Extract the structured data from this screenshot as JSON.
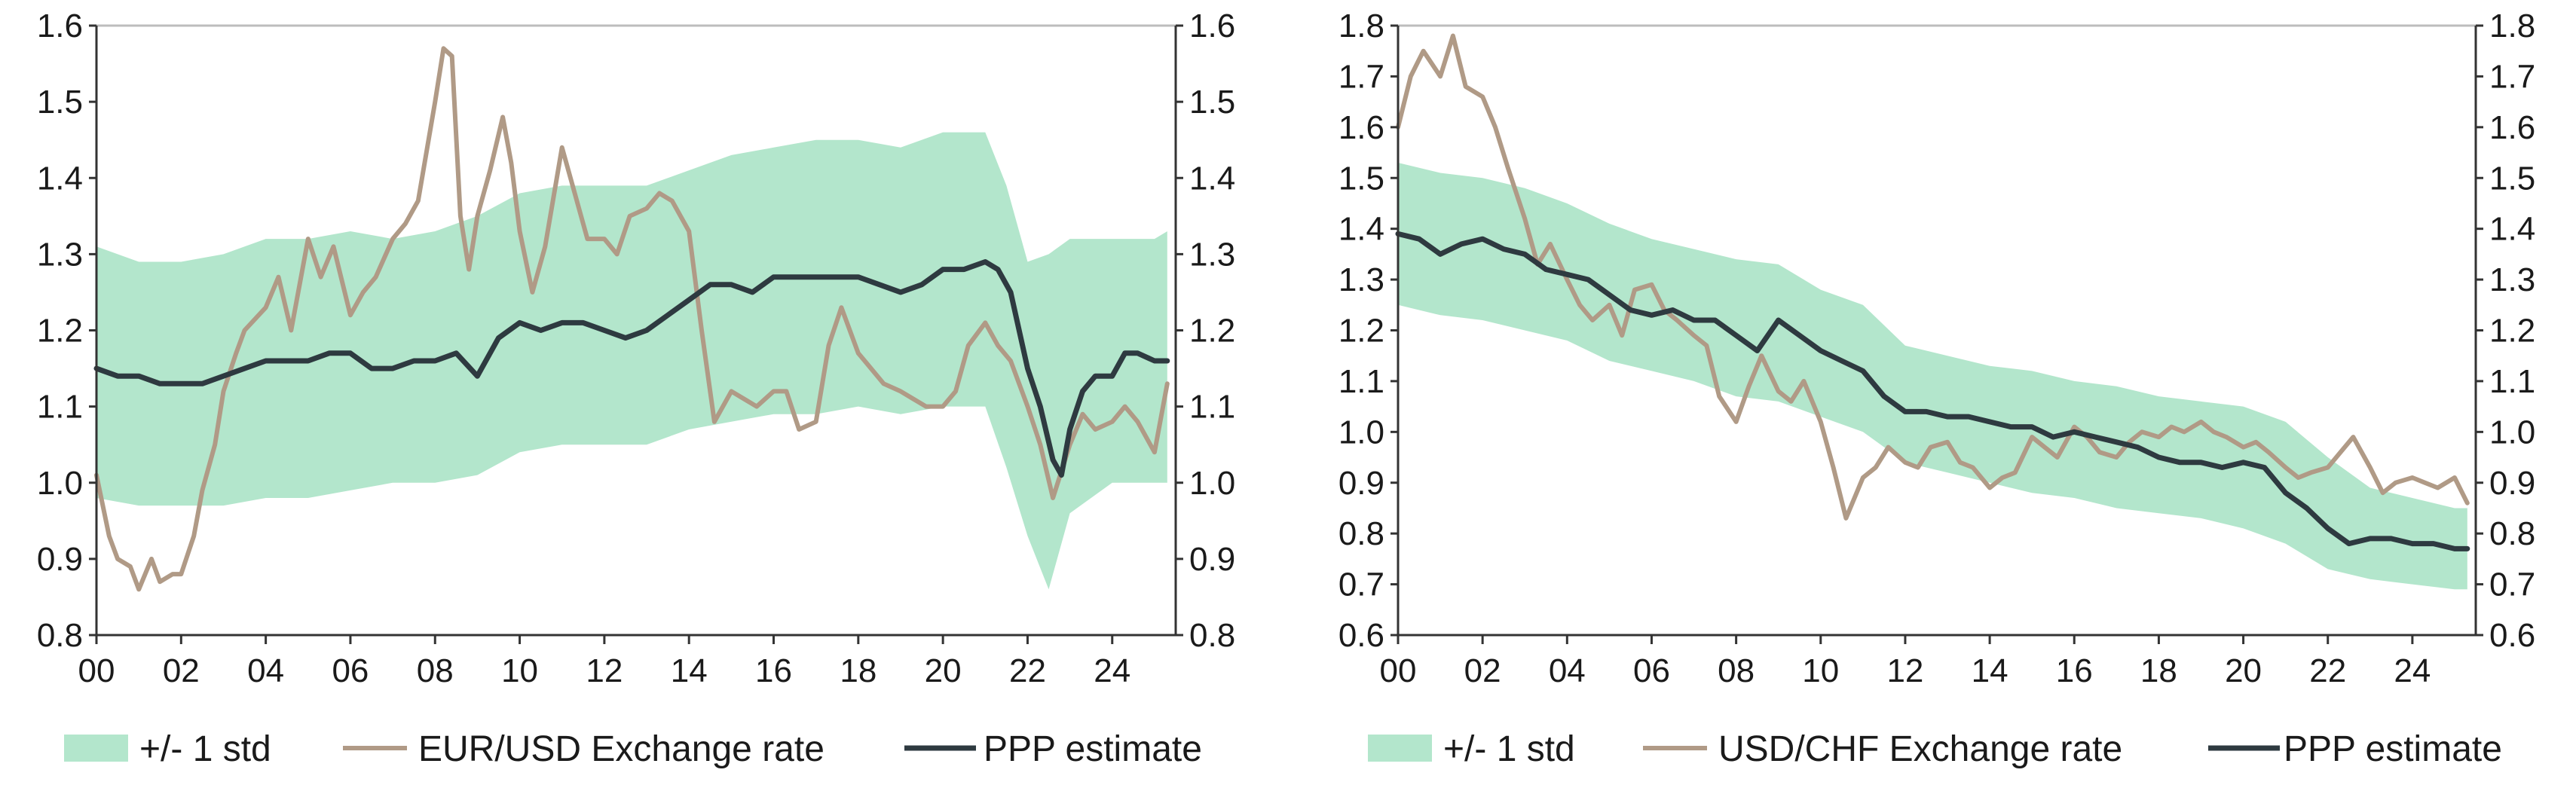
{
  "colors": {
    "band": "#b3e6cc",
    "rate": "#b09a86",
    "ppp": "#2e3a40"
  },
  "chart_data": [
    {
      "type": "line",
      "series_labels": {
        "band": "+/- 1 std",
        "rate": "EUR/USD Exchange rate",
        "ppp": "PPP estimate"
      },
      "x_range": [
        0,
        25.5
      ],
      "x_ticks": [
        0,
        2,
        4,
        6,
        8,
        10,
        12,
        14,
        16,
        18,
        20,
        22,
        24
      ],
      "x_tick_labels": [
        "00",
        "02",
        "04",
        "06",
        "08",
        "10",
        "12",
        "14",
        "16",
        "18",
        "20",
        "22",
        "24"
      ],
      "ylim": [
        0.8,
        1.6
      ],
      "y_ticks": [
        0.8,
        0.9,
        1.0,
        1.1,
        1.2,
        1.3,
        1.4,
        1.5,
        1.6
      ],
      "y_tick_labels": [
        "0.8",
        "0.9",
        "1.0",
        "1.1",
        "1.2",
        "1.3",
        "1.4",
        "1.5",
        "1.6"
      ],
      "ppp": {
        "x": [
          0,
          0.5,
          1,
          1.5,
          2,
          2.5,
          3,
          3.5,
          4,
          4.5,
          5,
          5.5,
          6,
          6.5,
          7,
          7.5,
          8,
          8.5,
          9,
          9.5,
          10,
          10.5,
          11,
          11.5,
          12,
          12.5,
          13,
          13.5,
          14,
          14.5,
          15,
          15.5,
          16,
          16.5,
          17,
          17.5,
          18,
          18.5,
          19,
          19.5,
          20,
          20.5,
          21,
          21.3,
          21.6,
          22,
          22.3,
          22.6,
          22.8,
          23,
          23.3,
          23.6,
          24,
          24.3,
          24.6,
          25,
          25.3
        ],
        "y": [
          1.15,
          1.14,
          1.14,
          1.13,
          1.13,
          1.13,
          1.14,
          1.15,
          1.16,
          1.16,
          1.16,
          1.17,
          1.17,
          1.15,
          1.15,
          1.16,
          1.16,
          1.17,
          1.14,
          1.19,
          1.21,
          1.2,
          1.21,
          1.21,
          1.2,
          1.19,
          1.2,
          1.22,
          1.24,
          1.26,
          1.26,
          1.25,
          1.27,
          1.27,
          1.27,
          1.27,
          1.27,
          1.26,
          1.25,
          1.26,
          1.28,
          1.28,
          1.29,
          1.28,
          1.25,
          1.15,
          1.1,
          1.03,
          1.01,
          1.07,
          1.12,
          1.14,
          1.14,
          1.17,
          1.17,
          1.16,
          1.16
        ]
      },
      "rate": {
        "x": [
          0,
          0.3,
          0.5,
          0.8,
          1,
          1.3,
          1.5,
          1.8,
          2,
          2.3,
          2.5,
          2.8,
          3,
          3.3,
          3.5,
          4,
          4.3,
          4.6,
          5,
          5.3,
          5.6,
          6,
          6.3,
          6.6,
          7,
          7.3,
          7.6,
          8,
          8.2,
          8.4,
          8.6,
          8.8,
          9,
          9.3,
          9.6,
          9.8,
          10,
          10.3,
          10.6,
          11,
          11.3,
          11.6,
          12,
          12.3,
          12.6,
          13,
          13.3,
          13.6,
          14,
          14.3,
          14.6,
          15,
          15.3,
          15.6,
          16,
          16.3,
          16.6,
          17,
          17.3,
          17.6,
          18,
          18.3,
          18.6,
          19,
          19.3,
          19.6,
          20,
          20.3,
          20.6,
          21,
          21.3,
          21.6,
          22,
          22.3,
          22.6,
          23,
          23.3,
          23.6,
          24,
          24.3,
          24.6,
          25,
          25.3
        ],
        "y": [
          1.01,
          0.93,
          0.9,
          0.89,
          0.86,
          0.9,
          0.87,
          0.88,
          0.88,
          0.93,
          0.99,
          1.05,
          1.12,
          1.17,
          1.2,
          1.23,
          1.27,
          1.2,
          1.32,
          1.27,
          1.31,
          1.22,
          1.25,
          1.27,
          1.32,
          1.34,
          1.37,
          1.5,
          1.57,
          1.56,
          1.35,
          1.28,
          1.35,
          1.41,
          1.48,
          1.42,
          1.33,
          1.25,
          1.31,
          1.44,
          1.38,
          1.32,
          1.32,
          1.3,
          1.35,
          1.36,
          1.38,
          1.37,
          1.33,
          1.2,
          1.08,
          1.12,
          1.11,
          1.1,
          1.12,
          1.12,
          1.07,
          1.08,
          1.18,
          1.23,
          1.17,
          1.15,
          1.13,
          1.12,
          1.11,
          1.1,
          1.1,
          1.12,
          1.18,
          1.21,
          1.18,
          1.16,
          1.1,
          1.05,
          0.98,
          1.05,
          1.09,
          1.07,
          1.08,
          1.1,
          1.08,
          1.04,
          1.13
        ]
      },
      "band_upper": {
        "x": [
          0,
          1,
          2,
          3,
          4,
          5,
          6,
          7,
          8,
          9,
          10,
          11,
          12,
          13,
          14,
          15,
          16,
          17,
          18,
          19,
          20,
          21,
          21.5,
          22,
          22.5,
          23,
          24,
          25,
          25.3
        ],
        "y": [
          1.31,
          1.29,
          1.29,
          1.3,
          1.32,
          1.32,
          1.33,
          1.32,
          1.33,
          1.35,
          1.38,
          1.39,
          1.39,
          1.39,
          1.41,
          1.43,
          1.44,
          1.45,
          1.45,
          1.44,
          1.46,
          1.46,
          1.39,
          1.29,
          1.3,
          1.32,
          1.32,
          1.32,
          1.33
        ]
      },
      "band_lower": {
        "x": [
          0,
          1,
          2,
          3,
          4,
          5,
          6,
          7,
          8,
          9,
          10,
          11,
          12,
          13,
          14,
          15,
          16,
          17,
          18,
          19,
          20,
          21,
          21.5,
          22,
          22.5,
          23,
          24,
          25,
          25.3
        ],
        "y": [
          0.98,
          0.97,
          0.97,
          0.97,
          0.98,
          0.98,
          0.99,
          1.0,
          1.0,
          1.01,
          1.04,
          1.05,
          1.05,
          1.05,
          1.07,
          1.08,
          1.09,
          1.09,
          1.1,
          1.09,
          1.1,
          1.1,
          1.02,
          0.93,
          0.86,
          0.96,
          1.0,
          1.0,
          1.0
        ]
      }
    },
    {
      "type": "line",
      "series_labels": {
        "band": "+/- 1 std",
        "rate": "USD/CHF Exchange rate",
        "ppp": "PPP estimate"
      },
      "x_range": [
        0,
        25.5
      ],
      "x_ticks": [
        0,
        2,
        4,
        6,
        8,
        10,
        12,
        14,
        16,
        18,
        20,
        22,
        24
      ],
      "x_tick_labels": [
        "00",
        "02",
        "04",
        "06",
        "08",
        "10",
        "12",
        "14",
        "16",
        "18",
        "20",
        "22",
        "24"
      ],
      "ylim": [
        0.6,
        1.8
      ],
      "y_ticks": [
        0.6,
        0.7,
        0.8,
        0.9,
        1.0,
        1.1,
        1.2,
        1.3,
        1.4,
        1.5,
        1.6,
        1.7,
        1.8
      ],
      "y_tick_labels": [
        "0.6",
        "0.7",
        "0.8",
        "0.9",
        "1.0",
        "1.1",
        "1.2",
        "1.3",
        "1.4",
        "1.5",
        "1.6",
        "1.7",
        "1.8"
      ],
      "ppp": {
        "x": [
          0,
          0.5,
          1,
          1.5,
          2,
          2.5,
          3,
          3.5,
          4,
          4.5,
          5,
          5.5,
          6,
          6.5,
          7,
          7.5,
          8,
          8.5,
          9,
          9.5,
          10,
          10.5,
          11,
          11.5,
          12,
          12.5,
          13,
          13.5,
          14,
          14.5,
          15,
          15.5,
          16,
          16.5,
          17,
          17.5,
          18,
          18.5,
          19,
          19.5,
          20,
          20.5,
          21,
          21.5,
          22,
          22.5,
          23,
          23.5,
          24,
          24.5,
          25,
          25.3
        ],
        "y": [
          1.39,
          1.38,
          1.35,
          1.37,
          1.38,
          1.36,
          1.35,
          1.32,
          1.31,
          1.3,
          1.27,
          1.24,
          1.23,
          1.24,
          1.22,
          1.22,
          1.19,
          1.16,
          1.22,
          1.19,
          1.16,
          1.14,
          1.12,
          1.07,
          1.04,
          1.04,
          1.03,
          1.03,
          1.02,
          1.01,
          1.01,
          0.99,
          1.0,
          0.99,
          0.98,
          0.97,
          0.95,
          0.94,
          0.94,
          0.93,
          0.94,
          0.93,
          0.88,
          0.85,
          0.81,
          0.78,
          0.79,
          0.79,
          0.78,
          0.78,
          0.77,
          0.77
        ]
      },
      "rate": {
        "x": [
          0,
          0.3,
          0.6,
          1,
          1.3,
          1.6,
          2,
          2.3,
          2.6,
          3,
          3.3,
          3.6,
          4,
          4.3,
          4.6,
          5,
          5.3,
          5.6,
          6,
          6.3,
          6.6,
          7,
          7.3,
          7.6,
          8,
          8.3,
          8.6,
          9,
          9.3,
          9.6,
          10,
          10.3,
          10.6,
          11,
          11.3,
          11.6,
          12,
          12.3,
          12.6,
          13,
          13.3,
          13.6,
          14,
          14.3,
          14.6,
          15,
          15.3,
          15.6,
          16,
          16.3,
          16.6,
          17,
          17.3,
          17.6,
          18,
          18.3,
          18.6,
          19,
          19.3,
          19.6,
          20,
          20.3,
          20.6,
          21,
          21.3,
          21.6,
          22,
          22.3,
          22.6,
          23,
          23.3,
          23.6,
          24,
          24.3,
          24.6,
          25,
          25.3
        ],
        "y": [
          1.6,
          1.7,
          1.75,
          1.7,
          1.78,
          1.68,
          1.66,
          1.6,
          1.52,
          1.42,
          1.33,
          1.37,
          1.3,
          1.25,
          1.22,
          1.25,
          1.19,
          1.28,
          1.29,
          1.24,
          1.22,
          1.19,
          1.17,
          1.07,
          1.02,
          1.09,
          1.15,
          1.08,
          1.06,
          1.1,
          1.02,
          0.93,
          0.83,
          0.91,
          0.93,
          0.97,
          0.94,
          0.93,
          0.97,
          0.98,
          0.94,
          0.93,
          0.89,
          0.91,
          0.92,
          0.99,
          0.97,
          0.95,
          1.01,
          0.99,
          0.96,
          0.95,
          0.98,
          1.0,
          0.99,
          1.01,
          1.0,
          1.02,
          1.0,
          0.99,
          0.97,
          0.98,
          0.96,
          0.93,
          0.91,
          0.92,
          0.93,
          0.96,
          0.99,
          0.93,
          0.88,
          0.9,
          0.91,
          0.9,
          0.89,
          0.91,
          0.86
        ]
      },
      "band_upper": {
        "x": [
          0,
          1,
          2,
          3,
          4,
          5,
          6,
          7,
          8,
          9,
          10,
          11,
          12,
          13,
          14,
          15,
          16,
          17,
          18,
          19,
          20,
          21,
          22,
          23,
          24,
          25,
          25.3
        ],
        "y": [
          1.53,
          1.51,
          1.5,
          1.48,
          1.45,
          1.41,
          1.38,
          1.36,
          1.34,
          1.33,
          1.28,
          1.25,
          1.17,
          1.15,
          1.13,
          1.12,
          1.1,
          1.09,
          1.07,
          1.06,
          1.05,
          1.02,
          0.95,
          0.89,
          0.87,
          0.85,
          0.85
        ]
      },
      "band_lower": {
        "x": [
          0,
          1,
          2,
          3,
          4,
          5,
          6,
          7,
          8,
          9,
          10,
          11,
          12,
          13,
          14,
          15,
          16,
          17,
          18,
          19,
          20,
          21,
          22,
          23,
          24,
          25,
          25.3
        ],
        "y": [
          1.25,
          1.23,
          1.22,
          1.2,
          1.18,
          1.14,
          1.12,
          1.1,
          1.07,
          1.06,
          1.03,
          1.0,
          0.94,
          0.92,
          0.9,
          0.88,
          0.87,
          0.85,
          0.84,
          0.83,
          0.81,
          0.78,
          0.73,
          0.71,
          0.7,
          0.69,
          0.69
        ]
      }
    }
  ]
}
